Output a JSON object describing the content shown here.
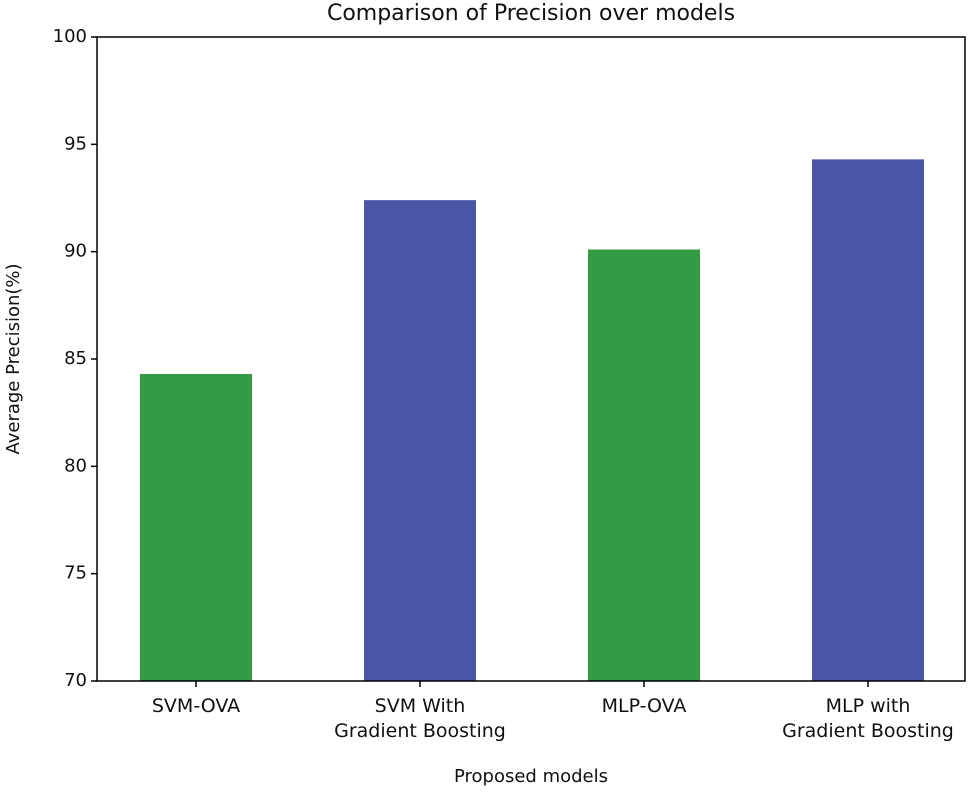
{
  "chart_data": {
    "type": "bar",
    "title": "Comparison of Precision over models",
    "xlabel": "Proposed models",
    "ylabel": "Average Precision(%)",
    "categories": [
      "SVM-OVA",
      "SVM With\nGradient Boosting",
      "MLP-OVA",
      "MLP with\nGradient Boosting"
    ],
    "values": [
      84.3,
      92.4,
      90.1,
      94.3
    ],
    "colors": [
      "#359a46",
      "#4856a5",
      "#359a46",
      "#4856a5"
    ],
    "ylim": [
      70,
      100
    ],
    "yticks": [
      70,
      75,
      80,
      85,
      90,
      95,
      100
    ],
    "grid": false
  }
}
